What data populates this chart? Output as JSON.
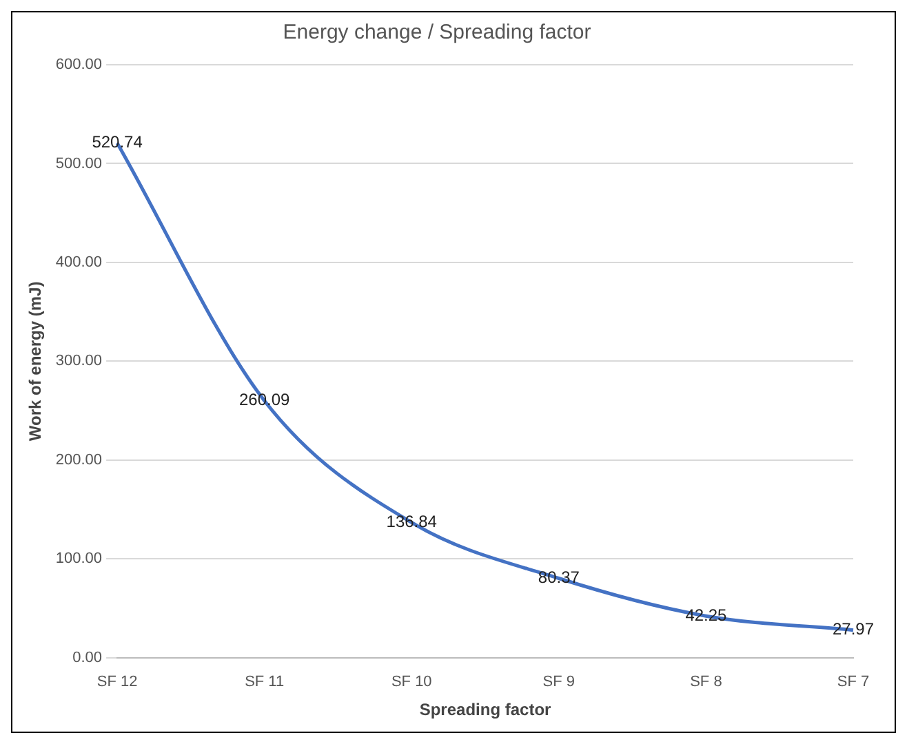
{
  "chart_data": {
    "type": "line",
    "title": "Energy change / Spreading factor",
    "xlabel": "Spreading factor",
    "ylabel": "Work of energy (mJ)",
    "categories": [
      "SF 12",
      "SF 11",
      "SF 10",
      "SF 9",
      "SF 8",
      "SF 7"
    ],
    "series": [
      {
        "color": "#4472c4",
        "values": [
          520.74,
          260.09,
          136.84,
          80.37,
          42.25,
          27.97
        ]
      }
    ],
    "ylim": [
      0,
      600
    ],
    "yticks": [
      {
        "value": 0,
        "label": "0.00"
      },
      {
        "value": 100,
        "label": "100.00"
      },
      {
        "value": 200,
        "label": "200.00"
      },
      {
        "value": 300,
        "label": "300.00"
      },
      {
        "value": 400,
        "label": "400.00"
      },
      {
        "value": 500,
        "label": "500.00"
      },
      {
        "value": 600,
        "label": "600.00"
      }
    ],
    "grid": "y",
    "legend": false,
    "marker": "none",
    "line_style": "solid",
    "data_labels": true
  }
}
